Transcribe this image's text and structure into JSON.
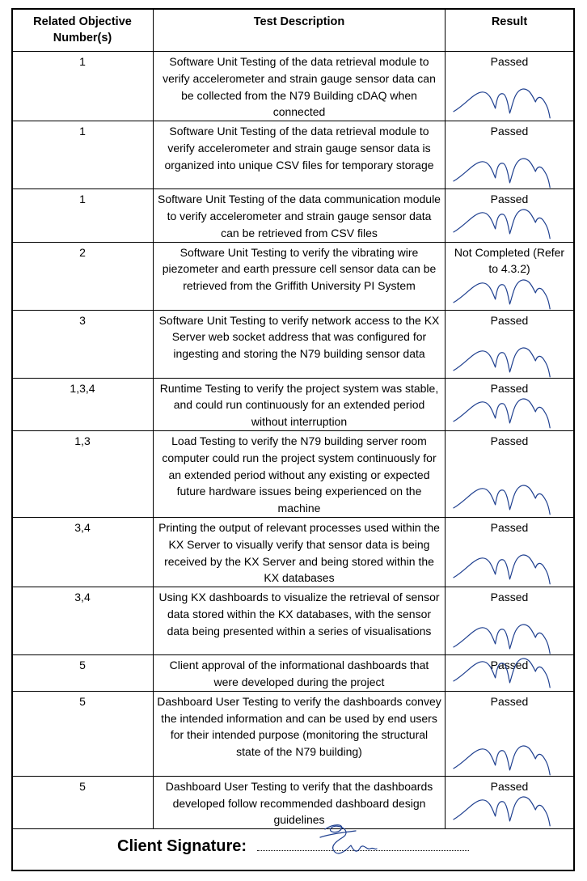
{
  "headers": {
    "objective": "Related Objective Number(s)",
    "description": "Test Description",
    "result": "Result"
  },
  "rows": [
    {
      "objective": "1",
      "description": "Software Unit Testing of the data retrieval module to verify accelerometer and strain gauge sensor data can be collected from the N79 Building cDAQ when connected",
      "result": "Passed"
    },
    {
      "objective": "1",
      "description": "Software Unit Testing of the data retrieval module to verify accelerometer and strain gauge sensor data is organized into unique CSV files for temporary storage",
      "result": "Passed"
    },
    {
      "objective": "1",
      "description": "Software Unit Testing of the data communication module to verify accelerometer and strain gauge sensor data can be retrieved from CSV files",
      "result": "Passed"
    },
    {
      "objective": "2",
      "description": "Software Unit Testing to verify the vibrating wire piezometer and earth pressure cell sensor data can be retrieved from the Griffith University PI System",
      "result": "Not Completed (Refer to 4.3.2)"
    },
    {
      "objective": "3",
      "description": "Software Unit Testing to verify network access to the KX Server web socket address that was configured for ingesting and storing the N79 building sensor data",
      "result": "Passed"
    },
    {
      "objective": "1,3,4",
      "description": "Runtime Testing to verify the project system was stable, and could run continuously for an extended period without interruption",
      "result": "Passed"
    },
    {
      "objective": "1,3",
      "description": "Load Testing to verify the N79 building server room computer could run the project system continuously for an extended period without any existing or expected future hardware issues being experienced on the machine",
      "result": "Passed"
    },
    {
      "objective": "3,4",
      "description": "Printing the output of relevant processes used within the KX Server to visually verify that sensor data is being received by the KX Server and being stored within the KX databases",
      "result": "Passed"
    },
    {
      "objective": "3,4",
      "description": "Using KX dashboards to visualize the retrieval of sensor data stored within the KX databases, with the sensor data being presented within a series of visualisations",
      "result": "Passed"
    },
    {
      "objective": "5",
      "description": "Client approval of the informational dashboards that were developed during the project",
      "result": "Passed"
    },
    {
      "objective": "5",
      "description": "Dashboard User Testing to verify the dashboards convey the intended information and can be used by end users for their intended purpose (monitoring the structural state of the N79 building)",
      "result": "Passed"
    },
    {
      "objective": "5",
      "description": "Dashboard User Testing to verify that the dashboards developed follow recommended dashboard design guidelines",
      "result": "Passed"
    }
  ],
  "footer": {
    "client_signature_label": "Client Signature:"
  },
  "colors": {
    "signature_ink": "#1e3f8f"
  }
}
